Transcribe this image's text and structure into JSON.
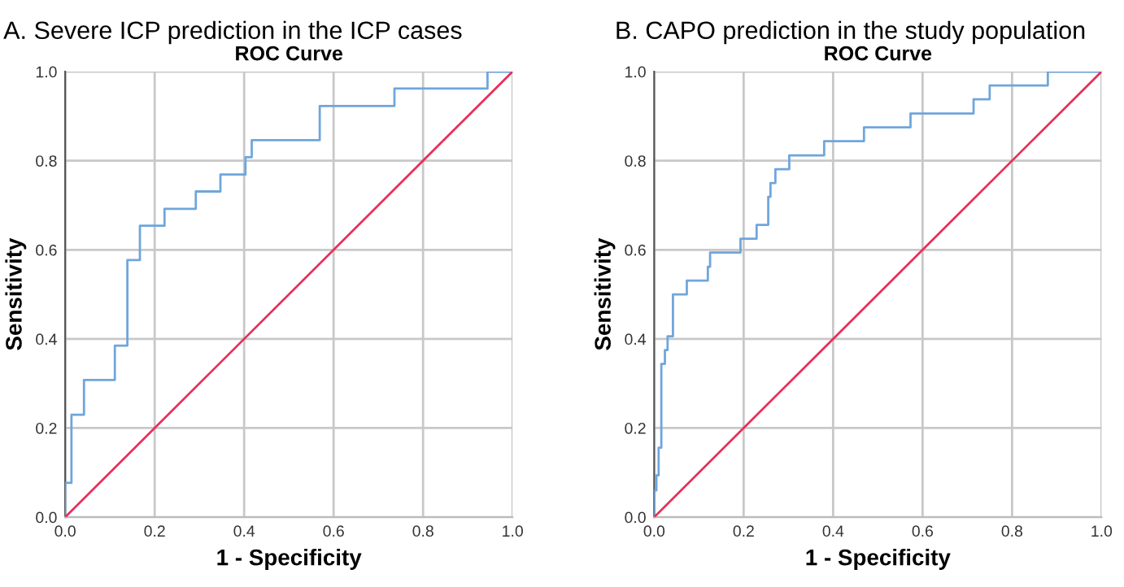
{
  "chart_data": [
    {
      "type": "line",
      "title": "A. Severe ICP prediction in the ICP cases",
      "subtitle": "ROC Curve",
      "xlabel": "1 - Specificity",
      "ylabel": "Sensitivity",
      "xlim": [
        0,
        1
      ],
      "ylim": [
        0,
        1
      ],
      "xticks": [
        {
          "value": 0,
          "label": "0.0"
        },
        {
          "value": 0.2,
          "label": "0.2"
        },
        {
          "value": 0.4,
          "label": "0.4"
        },
        {
          "value": 0.6,
          "label": "0.6"
        },
        {
          "value": 0.8,
          "label": "0.8"
        },
        {
          "value": 1,
          "label": "1.0"
        }
      ],
      "yticks": [
        {
          "value": 0,
          "label": "0.0"
        },
        {
          "value": 0.2,
          "label": "0.2"
        },
        {
          "value": 0.4,
          "label": "0.4"
        },
        {
          "value": 0.6,
          "label": "0.6"
        },
        {
          "value": 0.8,
          "label": "0.8"
        },
        {
          "value": 1,
          "label": "1.0"
        }
      ],
      "grid": true,
      "legend": false,
      "marker": "none",
      "line_style": "solid",
      "series": [
        {
          "color": "#6fa6dc",
          "x": [
            0,
            0,
            0.014,
            0.014,
            0.042,
            0.042,
            0.111,
            0.111,
            0.139,
            0.139,
            0.167,
            0.167,
            0.222,
            0.222,
            0.292,
            0.292,
            0.347,
            0.347,
            0.403,
            0.403,
            0.417,
            0.417,
            0.569,
            0.569,
            0.736,
            0.736,
            0.944,
            0.944,
            1
          ],
          "values": [
            0,
            0.077,
            0.077,
            0.23,
            0.23,
            0.308,
            0.308,
            0.385,
            0.385,
            0.577,
            0.577,
            0.654,
            0.654,
            0.692,
            0.692,
            0.731,
            0.731,
            0.769,
            0.769,
            0.808,
            0.808,
            0.846,
            0.846,
            0.923,
            0.923,
            0.962,
            0.962,
            1,
            1
          ]
        },
        {
          "color": "#e8305a",
          "x": [
            0,
            1
          ],
          "values": [
            0,
            1
          ]
        }
      ]
    },
    {
      "type": "line",
      "title": "B. CAPO prediction in the study population",
      "subtitle": "ROC Curve",
      "xlabel": "1 - Specificity",
      "ylabel": "Sensitivity",
      "xlim": [
        0,
        1
      ],
      "ylim": [
        0,
        1
      ],
      "xticks": [
        {
          "value": 0,
          "label": "0.0"
        },
        {
          "value": 0.2,
          "label": "0.2"
        },
        {
          "value": 0.4,
          "label": "0.4"
        },
        {
          "value": 0.6,
          "label": "0.6"
        },
        {
          "value": 0.8,
          "label": "0.8"
        },
        {
          "value": 1,
          "label": "1.0"
        }
      ],
      "yticks": [
        {
          "value": 0,
          "label": "0.0"
        },
        {
          "value": 0.2,
          "label": "0.2"
        },
        {
          "value": 0.4,
          "label": "0.4"
        },
        {
          "value": 0.6,
          "label": "0.6"
        },
        {
          "value": 0.8,
          "label": "0.8"
        },
        {
          "value": 1,
          "label": "1.0"
        }
      ],
      "grid": true,
      "legend": false,
      "marker": "none",
      "line_style": "solid",
      "series": [
        {
          "color": "#6fa6dc",
          "x": [
            0,
            0,
            0.005,
            0.005,
            0.01,
            0.01,
            0.016,
            0.016,
            0.024,
            0.024,
            0.03,
            0.03,
            0.042,
            0.042,
            0.073,
            0.073,
            0.12,
            0.12,
            0.125,
            0.125,
            0.193,
            0.193,
            0.229,
            0.229,
            0.255,
            0.255,
            0.26,
            0.26,
            0.271,
            0.271,
            0.302,
            0.302,
            0.38,
            0.38,
            0.469,
            0.469,
            0.573,
            0.573,
            0.714,
            0.714,
            0.75,
            0.75,
            0.88,
            0.88,
            1
          ],
          "values": [
            0,
            0.06,
            0.06,
            0.094,
            0.094,
            0.156,
            0.156,
            0.344,
            0.344,
            0.375,
            0.375,
            0.406,
            0.406,
            0.5,
            0.5,
            0.531,
            0.531,
            0.562,
            0.562,
            0.594,
            0.594,
            0.625,
            0.625,
            0.656,
            0.656,
            0.719,
            0.719,
            0.75,
            0.75,
            0.781,
            0.781,
            0.812,
            0.812,
            0.844,
            0.844,
            0.875,
            0.875,
            0.906,
            0.906,
            0.938,
            0.938,
            0.969,
            0.969,
            1,
            1
          ]
        },
        {
          "color": "#e8305a",
          "x": [
            0,
            1
          ],
          "values": [
            0,
            1
          ]
        }
      ]
    }
  ]
}
